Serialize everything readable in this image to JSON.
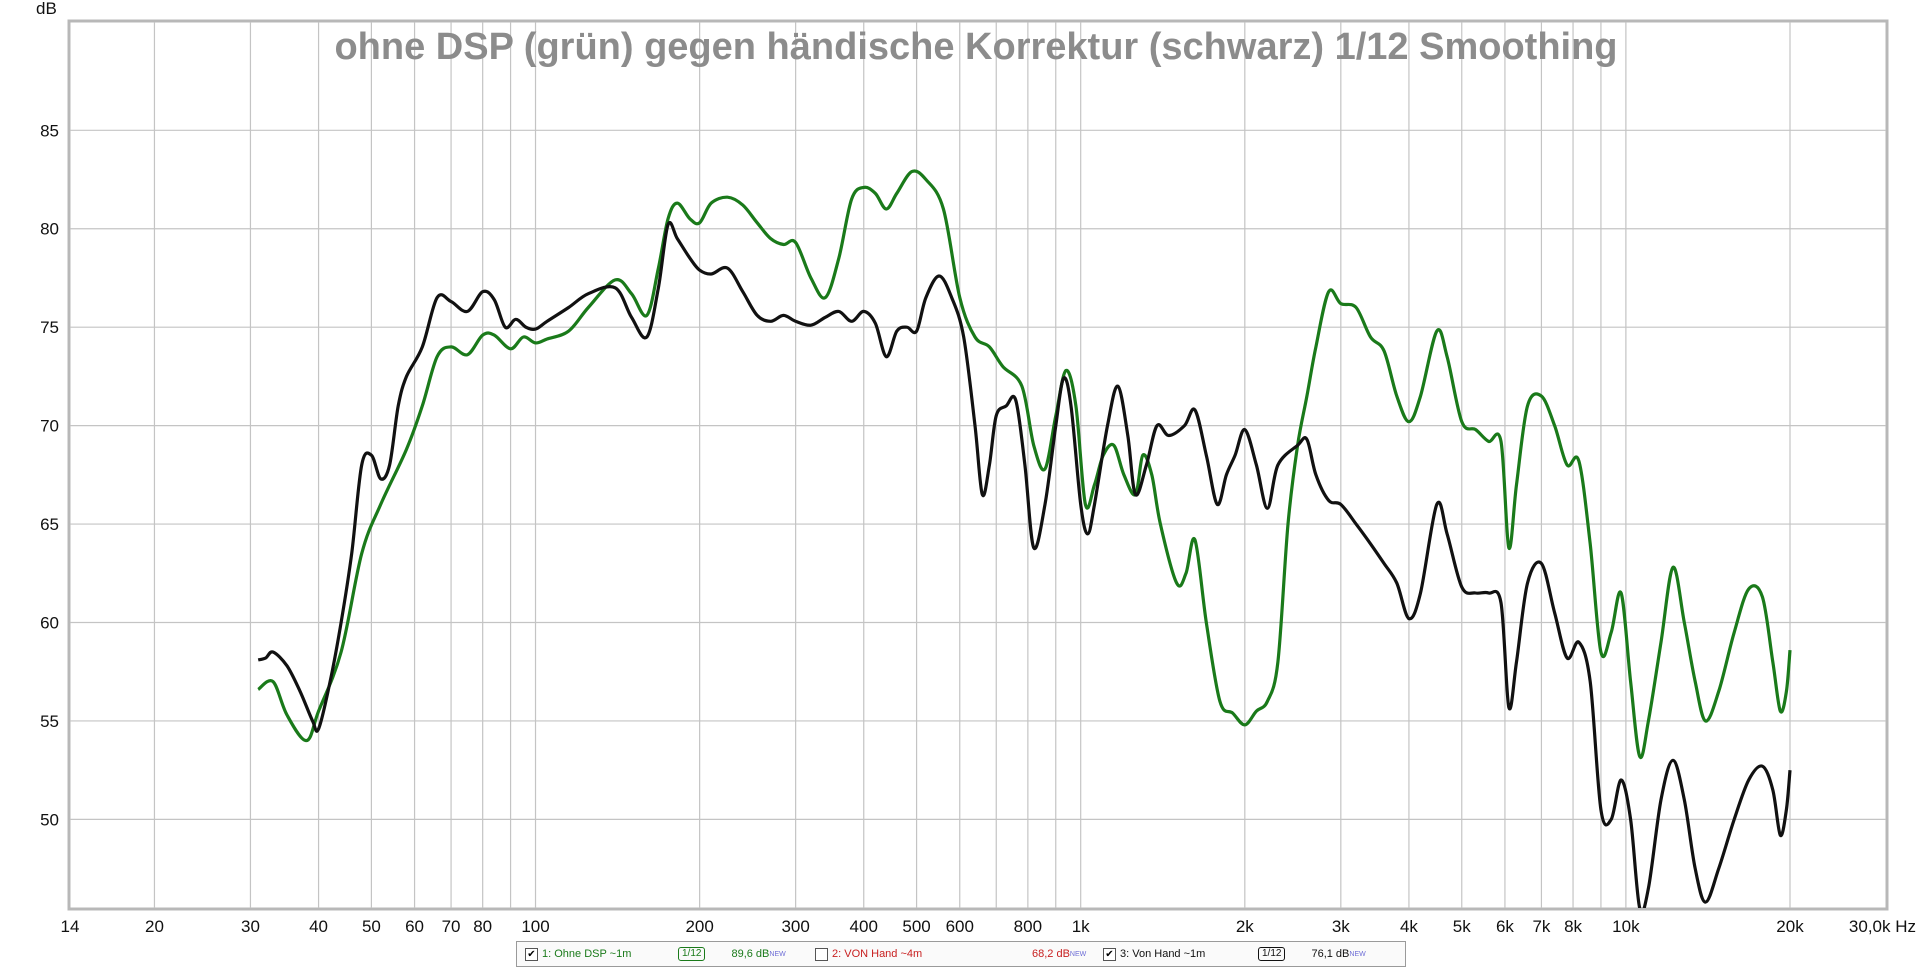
{
  "chart_data": {
    "type": "line",
    "title": "ohne DSP (grün) gegen händische Korrektur (schwarz) 1/12 Smoothing",
    "ylabel": "dB",
    "x_scale": "log",
    "xlim": [
      14,
      30000
    ],
    "ylim": [
      45.5,
      90.5
    ],
    "grid": true,
    "y_ticks": [
      50,
      55,
      60,
      65,
      70,
      75,
      80,
      85
    ],
    "x_ticks": [
      {
        "v": 14,
        "l": "14"
      },
      {
        "v": 20,
        "l": "20"
      },
      {
        "v": 30,
        "l": "30"
      },
      {
        "v": 40,
        "l": "40"
      },
      {
        "v": 50,
        "l": "50"
      },
      {
        "v": 60,
        "l": "60"
      },
      {
        "v": 70,
        "l": "70"
      },
      {
        "v": 80,
        "l": "80"
      },
      {
        "v": 100,
        "l": "100"
      },
      {
        "v": 200,
        "l": "200"
      },
      {
        "v": 300,
        "l": "300"
      },
      {
        "v": 400,
        "l": "400"
      },
      {
        "v": 500,
        "l": "500"
      },
      {
        "v": 600,
        "l": "600"
      },
      {
        "v": 800,
        "l": "800"
      },
      {
        "v": 1000,
        "l": "1k"
      },
      {
        "v": 2000,
        "l": "2k"
      },
      {
        "v": 3000,
        "l": "3k"
      },
      {
        "v": 4000,
        "l": "4k"
      },
      {
        "v": 5000,
        "l": "5k"
      },
      {
        "v": 6000,
        "l": "6k"
      },
      {
        "v": 7000,
        "l": "7k"
      },
      {
        "v": 8000,
        "l": "8k"
      },
      {
        "v": 10000,
        "l": "10k"
      },
      {
        "v": 20000,
        "l": "20k"
      },
      {
        "v": 30000,
        "l": "30,0k Hz"
      }
    ],
    "minor_grid": [
      90,
      700,
      900,
      9000
    ],
    "series": [
      {
        "name": "1: Ohne DSP ~1m",
        "color": "#1a7a1a",
        "points": [
          [
            31,
            56.6
          ],
          [
            33,
            57.0
          ],
          [
            35,
            55.3
          ],
          [
            38,
            54.0
          ],
          [
            40,
            55.5
          ],
          [
            44,
            58.5
          ],
          [
            48,
            63.5
          ],
          [
            52,
            66.0
          ],
          [
            58,
            68.8
          ],
          [
            62,
            71.0
          ],
          [
            66,
            73.5
          ],
          [
            70,
            74.0
          ],
          [
            75,
            73.6
          ],
          [
            80,
            74.6
          ],
          [
            84,
            74.6
          ],
          [
            90,
            73.9
          ],
          [
            95,
            74.5
          ],
          [
            100,
            74.2
          ],
          [
            105,
            74.4
          ],
          [
            115,
            74.8
          ],
          [
            125,
            76.0
          ],
          [
            140,
            77.4
          ],
          [
            150,
            76.7
          ],
          [
            160,
            75.6
          ],
          [
            168,
            78.0
          ],
          [
            175,
            80.5
          ],
          [
            182,
            81.3
          ],
          [
            192,
            80.5
          ],
          [
            200,
            80.3
          ],
          [
            210,
            81.3
          ],
          [
            225,
            81.6
          ],
          [
            240,
            81.2
          ],
          [
            255,
            80.3
          ],
          [
            270,
            79.5
          ],
          [
            285,
            79.2
          ],
          [
            300,
            79.3
          ],
          [
            320,
            77.5
          ],
          [
            340,
            76.5
          ],
          [
            360,
            78.5
          ],
          [
            380,
            81.5
          ],
          [
            400,
            82.1
          ],
          [
            420,
            81.8
          ],
          [
            440,
            81.0
          ],
          [
            460,
            81.8
          ],
          [
            490,
            82.9
          ],
          [
            520,
            82.5
          ],
          [
            560,
            81.0
          ],
          [
            600,
            76.5
          ],
          [
            640,
            74.5
          ],
          [
            680,
            74.0
          ],
          [
            720,
            73.0
          ],
          [
            780,
            72.0
          ],
          [
            820,
            69.0
          ],
          [
            860,
            67.8
          ],
          [
            900,
            70.5
          ],
          [
            940,
            72.8
          ],
          [
            980,
            71.0
          ],
          [
            1020,
            66.0
          ],
          [
            1060,
            67.0
          ],
          [
            1100,
            68.5
          ],
          [
            1150,
            69.0
          ],
          [
            1200,
            67.5
          ],
          [
            1260,
            66.5
          ],
          [
            1300,
            68.5
          ],
          [
            1350,
            67.5
          ],
          [
            1400,
            65.0
          ],
          [
            1500,
            62.0
          ],
          [
            1560,
            62.5
          ],
          [
            1620,
            64.2
          ],
          [
            1700,
            60.0
          ],
          [
            1800,
            56.0
          ],
          [
            1900,
            55.4
          ],
          [
            2000,
            54.8
          ],
          [
            2100,
            55.5
          ],
          [
            2200,
            56.0
          ],
          [
            2300,
            58.0
          ],
          [
            2400,
            65.0
          ],
          [
            2500,
            69.0
          ],
          [
            2600,
            71.5
          ],
          [
            2700,
            74.0
          ],
          [
            2850,
            76.8
          ],
          [
            3000,
            76.2
          ],
          [
            3200,
            76.0
          ],
          [
            3400,
            74.5
          ],
          [
            3600,
            73.8
          ],
          [
            3800,
            71.5
          ],
          [
            4000,
            70.2
          ],
          [
            4200,
            71.5
          ],
          [
            4500,
            74.8
          ],
          [
            4700,
            73.5
          ],
          [
            5000,
            70.2
          ],
          [
            5300,
            69.8
          ],
          [
            5600,
            69.2
          ],
          [
            5900,
            69.2
          ],
          [
            6100,
            63.8
          ],
          [
            6300,
            67.0
          ],
          [
            6600,
            71.0
          ],
          [
            7000,
            71.5
          ],
          [
            7400,
            70.0
          ],
          [
            7800,
            68.0
          ],
          [
            8200,
            68.2
          ],
          [
            8600,
            64.0
          ],
          [
            9000,
            58.5
          ],
          [
            9400,
            59.5
          ],
          [
            9800,
            61.5
          ],
          [
            10200,
            57.0
          ],
          [
            10600,
            53.2
          ],
          [
            11000,
            55.0
          ],
          [
            11600,
            59.0
          ],
          [
            12200,
            62.8
          ],
          [
            12800,
            60.0
          ],
          [
            13400,
            57.0
          ],
          [
            14000,
            55.0
          ],
          [
            14800,
            56.5
          ],
          [
            15800,
            59.5
          ],
          [
            16800,
            61.7
          ],
          [
            17800,
            61.3
          ],
          [
            18600,
            58.0
          ],
          [
            19200,
            55.5
          ],
          [
            19700,
            56.5
          ],
          [
            20000,
            58.6
          ]
        ]
      },
      {
        "name": "3: Von Hand ~1m",
        "color": "#111111",
        "points": [
          [
            31,
            58.1
          ],
          [
            32,
            58.2
          ],
          [
            33,
            58.5
          ],
          [
            35,
            57.8
          ],
          [
            37,
            56.5
          ],
          [
            39,
            55.0
          ],
          [
            40,
            54.6
          ],
          [
            42,
            57.0
          ],
          [
            44,
            60.0
          ],
          [
            46,
            63.5
          ],
          [
            48,
            68.0
          ],
          [
            50,
            68.5
          ],
          [
            52,
            67.3
          ],
          [
            54,
            68.0
          ],
          [
            56,
            71.0
          ],
          [
            58,
            72.5
          ],
          [
            62,
            74.0
          ],
          [
            66,
            76.5
          ],
          [
            70,
            76.3
          ],
          [
            75,
            75.8
          ],
          [
            80,
            76.8
          ],
          [
            84,
            76.4
          ],
          [
            88,
            75.0
          ],
          [
            92,
            75.4
          ],
          [
            96,
            75.0
          ],
          [
            100,
            74.9
          ],
          [
            105,
            75.3
          ],
          [
            115,
            76.0
          ],
          [
            125,
            76.7
          ],
          [
            140,
            77.0
          ],
          [
            150,
            75.5
          ],
          [
            160,
            74.5
          ],
          [
            168,
            77.0
          ],
          [
            175,
            80.2
          ],
          [
            182,
            79.5
          ],
          [
            192,
            78.5
          ],
          [
            200,
            77.9
          ],
          [
            210,
            77.7
          ],
          [
            225,
            78.0
          ],
          [
            240,
            76.8
          ],
          [
            255,
            75.6
          ],
          [
            270,
            75.3
          ],
          [
            285,
            75.6
          ],
          [
            300,
            75.3
          ],
          [
            320,
            75.1
          ],
          [
            340,
            75.5
          ],
          [
            360,
            75.8
          ],
          [
            380,
            75.3
          ],
          [
            400,
            75.8
          ],
          [
            420,
            75.2
          ],
          [
            440,
            73.5
          ],
          [
            460,
            74.8
          ],
          [
            480,
            75.0
          ],
          [
            500,
            74.8
          ],
          [
            520,
            76.5
          ],
          [
            550,
            77.6
          ],
          [
            580,
            76.5
          ],
          [
            610,
            74.5
          ],
          [
            640,
            70.0
          ],
          [
            660,
            66.5
          ],
          [
            680,
            68.0
          ],
          [
            700,
            70.5
          ],
          [
            730,
            71.0
          ],
          [
            760,
            71.3
          ],
          [
            790,
            68.0
          ],
          [
            820,
            63.8
          ],
          [
            860,
            66.0
          ],
          [
            900,
            70.0
          ],
          [
            930,
            72.4
          ],
          [
            960,
            71.0
          ],
          [
            1000,
            66.0
          ],
          [
            1030,
            64.5
          ],
          [
            1060,
            66.0
          ],
          [
            1120,
            70.0
          ],
          [
            1170,
            72.0
          ],
          [
            1220,
            69.5
          ],
          [
            1260,
            66.5
          ],
          [
            1320,
            68.0
          ],
          [
            1380,
            70.0
          ],
          [
            1450,
            69.5
          ],
          [
            1550,
            70.0
          ],
          [
            1620,
            70.8
          ],
          [
            1700,
            68.5
          ],
          [
            1780,
            66.0
          ],
          [
            1850,
            67.5
          ],
          [
            1920,
            68.5
          ],
          [
            2000,
            69.8
          ],
          [
            2100,
            68.0
          ],
          [
            2200,
            65.8
          ],
          [
            2300,
            68.0
          ],
          [
            2500,
            69.0
          ],
          [
            2600,
            69.3
          ],
          [
            2700,
            67.5
          ],
          [
            2850,
            66.2
          ],
          [
            3000,
            66.0
          ],
          [
            3200,
            65.0
          ],
          [
            3400,
            64.0
          ],
          [
            3600,
            63.0
          ],
          [
            3800,
            62.0
          ],
          [
            4000,
            60.2
          ],
          [
            4200,
            61.5
          ],
          [
            4500,
            66.0
          ],
          [
            4700,
            64.5
          ],
          [
            5000,
            61.8
          ],
          [
            5300,
            61.5
          ],
          [
            5600,
            61.5
          ],
          [
            5900,
            61.0
          ],
          [
            6100,
            55.7
          ],
          [
            6300,
            58.0
          ],
          [
            6600,
            62.0
          ],
          [
            7000,
            63.0
          ],
          [
            7400,
            60.5
          ],
          [
            7800,
            58.2
          ],
          [
            8200,
            59.0
          ],
          [
            8600,
            57.0
          ],
          [
            9000,
            50.5
          ],
          [
            9400,
            50.0
          ],
          [
            9800,
            52.0
          ],
          [
            10200,
            50.0
          ],
          [
            10600,
            45.5
          ],
          [
            11000,
            46.5
          ],
          [
            11600,
            51.0
          ],
          [
            12200,
            53.0
          ],
          [
            12800,
            51.0
          ],
          [
            13400,
            47.5
          ],
          [
            14000,
            45.8
          ],
          [
            14800,
            47.5
          ],
          [
            15800,
            50.0
          ],
          [
            16800,
            52.0
          ],
          [
            17800,
            52.7
          ],
          [
            18600,
            51.5
          ],
          [
            19200,
            49.2
          ],
          [
            19700,
            50.5
          ],
          [
            20000,
            52.5
          ]
        ]
      }
    ]
  },
  "legend": {
    "items": [
      {
        "checked": true,
        "label": "1: Ohne DSP ~1m",
        "smoothing": "1/12",
        "level": "89,6 dB",
        "new": "NEW",
        "color": "#1a7a1a"
      },
      {
        "checked": false,
        "label": "2: VON Hand ~4m",
        "smoothing": "",
        "level": "68,2 dB",
        "new": "NEW",
        "color": "#c82020"
      },
      {
        "checked": true,
        "label": "3: Von Hand ~1m",
        "smoothing": "1/12",
        "level": "76,1 dB",
        "new": "NEW",
        "color": "#111111"
      }
    ]
  }
}
